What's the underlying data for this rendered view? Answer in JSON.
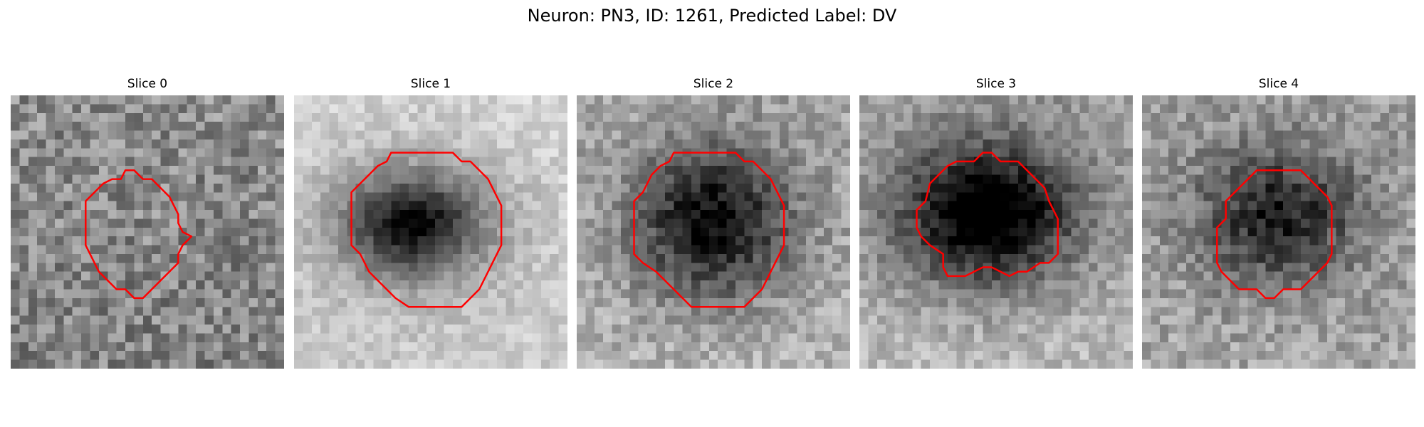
{
  "figure": {
    "title": "Neuron: PN3, ID: 1261, Predicted Label: DV",
    "contour_color": "#ff0000",
    "colormap": "gray"
  },
  "panels": [
    {
      "title": "Slice 0",
      "blob_strength": 0.0,
      "brightness": "medium",
      "noise": "high"
    },
    {
      "title": "Slice 1",
      "blob_strength": 0.55,
      "brightness": "bright",
      "noise": "low"
    },
    {
      "title": "Slice 2",
      "blob_strength": 0.6,
      "brightness": "medium",
      "noise": "medium"
    },
    {
      "title": "Slice 3",
      "blob_strength": 0.85,
      "brightness": "medium",
      "noise": "medium"
    },
    {
      "title": "Slice 4",
      "blob_strength": 0.45,
      "brightness": "medium",
      "noise": "medium"
    }
  ]
}
